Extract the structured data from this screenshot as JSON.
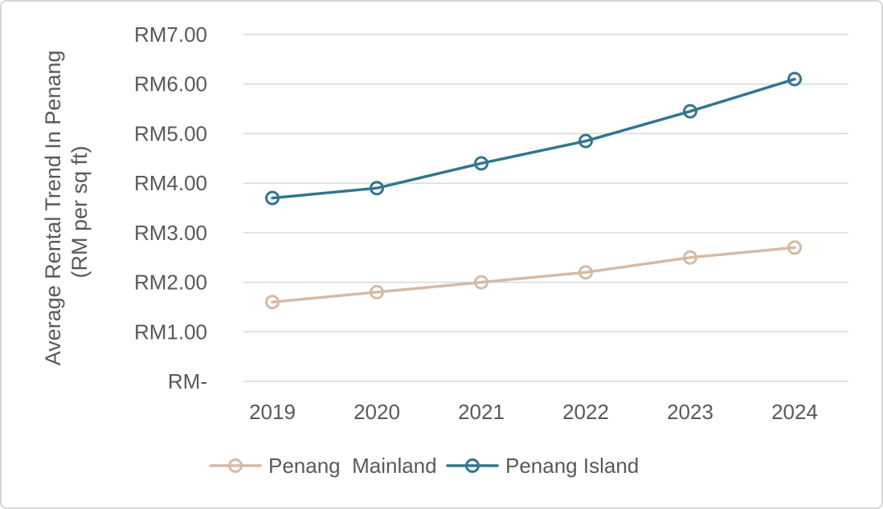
{
  "chart_data": {
    "type": "line",
    "title": "",
    "categories": [
      "2019",
      "2020",
      "2021",
      "2022",
      "2023",
      "2024"
    ],
    "series": [
      {
        "name": "Penang  Mainland",
        "values": [
          1.6,
          1.8,
          2.0,
          2.2,
          2.5,
          2.7
        ],
        "color": "#D5BAA5",
        "marker": "open-circle"
      },
      {
        "name": "Penang Island",
        "values": [
          3.7,
          3.9,
          4.4,
          4.85,
          5.45,
          6.1
        ],
        "color": "#31768E",
        "marker": "open-circle"
      }
    ],
    "xlabel": "",
    "ylabel_line1": "Average Rental Trend In Penang",
    "ylabel_line2": "(RM per sq ft)",
    "ylim": [
      0,
      7
    ],
    "y_ticks": [
      {
        "value": 0,
        "label": "RM-"
      },
      {
        "value": 1,
        "label": "RM1.00"
      },
      {
        "value": 2,
        "label": "RM2.00"
      },
      {
        "value": 3,
        "label": "RM3.00"
      },
      {
        "value": 4,
        "label": "RM4.00"
      },
      {
        "value": 5,
        "label": "RM5.00"
      },
      {
        "value": 6,
        "label": "RM6.00"
      },
      {
        "value": 7,
        "label": "RM7.00"
      }
    ],
    "grid": "horizontal",
    "legend_position": "bottom"
  },
  "colors": {
    "text": "#595959",
    "gridline": "#D9D9D9",
    "frame_border": "#D6D6D6",
    "background": "#FFFFFF"
  }
}
